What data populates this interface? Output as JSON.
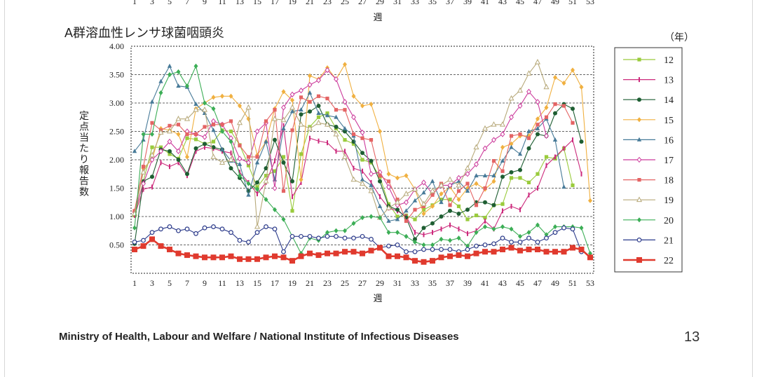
{
  "top_axis": {
    "ticks": [
      "1",
      "3",
      "5",
      "7",
      "9",
      "11",
      "13",
      "15",
      "17",
      "19",
      "21",
      "23",
      "25",
      "27",
      "29",
      "31",
      "33",
      "35",
      "37",
      "39",
      "41",
      "43",
      "45",
      "47",
      "49",
      "51",
      "53"
    ],
    "label": "週"
  },
  "chart_data": {
    "type": "line",
    "title": "A群溶血性レンサ球菌咽頭炎",
    "legend_title": "（年）",
    "xlabel": "週",
    "ylabel": "定点当たり報告数",
    "xlim": [
      1,
      53
    ],
    "ylim": [
      0,
      4.0
    ],
    "yticks": [
      "4.00",
      "3.50",
      "3.00",
      "2.50",
      "2.00",
      "1.50",
      "1.00",
      "0.50"
    ],
    "ytick_values": [
      4.0,
      3.5,
      3.0,
      2.5,
      2.0,
      1.5,
      1.0,
      0.5
    ],
    "xticks": [
      1,
      3,
      5,
      7,
      9,
      11,
      13,
      15,
      17,
      19,
      21,
      23,
      25,
      27,
      29,
      31,
      33,
      35,
      37,
      39,
      41,
      43,
      45,
      47,
      49,
      51,
      53
    ],
    "legend_position": "right",
    "x_start": 1,
    "series": [
      {
        "name": "12",
        "color": "#9acb3c",
        "marker": "square",
        "values": [
          1.02,
          1.62,
          2.22,
          2.22,
          2.1,
          2.02,
          2.38,
          2.36,
          2.28,
          2.32,
          2.52,
          2.5,
          2.26,
          1.9,
          1.52,
          1.72,
          1.8,
          2.05,
          1.1,
          2.1,
          2.58,
          2.75,
          2.82,
          2.55,
          2.35,
          2.28,
          2.0,
          1.95,
          1.7,
          1.22,
          1.0,
          1.02,
          0.95,
          1.12,
          1.2,
          1.3,
          1.3,
          1.18,
          0.95,
          1.02,
          0.98,
          1.2,
          1.22,
          1.68,
          1.68,
          1.6,
          1.75,
          2.05,
          2.02,
          2.2,
          1.55
        ]
      },
      {
        "name": "13",
        "color": "#cc2a7c",
        "marker": "bar",
        "values": [
          1.02,
          1.48,
          1.52,
          1.95,
          1.88,
          1.95,
          1.72,
          2.15,
          2.22,
          2.2,
          2.15,
          2.12,
          1.78,
          1.6,
          1.4,
          1.6,
          1.98,
          2.6,
          1.35,
          1.6,
          2.38,
          2.33,
          2.3,
          2.15,
          2.15,
          1.85,
          1.8,
          1.6,
          1.35,
          1.15,
          1.1,
          1.0,
          0.72,
          0.68,
          0.72,
          0.78,
          0.85,
          0.78,
          0.7,
          0.75,
          0.92,
          0.78,
          1.1,
          1.18,
          1.12,
          1.38,
          1.5,
          1.9,
          2.05,
          2.2,
          2.35,
          1.75
        ]
      },
      {
        "name": "14",
        "color": "#1e5e32",
        "marker": "circle-filled",
        "values": [
          0.52,
          1.62,
          1.7,
          2.18,
          2.15,
          2.0,
          1.75,
          2.2,
          2.28,
          2.22,
          2.18,
          1.85,
          1.68,
          1.45,
          1.6,
          1.85,
          2.35,
          1.95,
          1.62,
          2.8,
          2.85,
          2.95,
          2.62,
          2.58,
          2.5,
          2.32,
          2.12,
          1.98,
          1.62,
          1.18,
          1.12,
          0.98,
          0.6,
          0.8,
          0.88,
          1.0,
          1.1,
          1.05,
          1.12,
          1.25,
          1.25,
          1.2,
          1.7,
          1.78,
          1.82,
          2.2,
          2.45,
          2.42,
          2.82,
          2.98,
          2.9,
          2.32
        ]
      },
      {
        "name": "15",
        "color": "#f0b040",
        "marker": "diamond-filled",
        "values": [
          1.1,
          1.85,
          2.0,
          2.55,
          2.52,
          2.45,
          2.05,
          2.9,
          3.0,
          3.1,
          3.12,
          3.12,
          2.95,
          2.72,
          2.08,
          2.32,
          2.9,
          3.2,
          3.05,
          1.65,
          3.48,
          3.42,
          3.62,
          3.42,
          3.68,
          3.12,
          2.95,
          2.98,
          2.5,
          1.75,
          1.68,
          1.72,
          1.48,
          1.05,
          1.18,
          1.4,
          1.52,
          1.3,
          1.5,
          1.58,
          1.48,
          1.62,
          2.22,
          2.28,
          2.42,
          2.42,
          2.72,
          2.92,
          3.45,
          3.35,
          3.58,
          3.28,
          1.28
        ]
      },
      {
        "name": "16",
        "color": "#477a98",
        "marker": "triangle-filled",
        "values": [
          2.15,
          2.35,
          3.02,
          3.38,
          3.65,
          3.3,
          3.28,
          2.98,
          2.82,
          2.52,
          2.18,
          1.98,
          1.92,
          1.38,
          1.95,
          2.32,
          1.65,
          2.55,
          2.85,
          2.88,
          3.18,
          2.82,
          2.78,
          2.75,
          2.55,
          2.42,
          1.65,
          1.55,
          1.18,
          0.92,
          0.95,
          1.1,
          1.28,
          1.42,
          1.62,
          1.25,
          1.55,
          1.62,
          1.45,
          1.72,
          1.72,
          1.72,
          1.98,
          2.22,
          2.1,
          2.5,
          2.55,
          2.72,
          2.35,
          1.52
        ]
      },
      {
        "name": "17",
        "color": "#cc3b9c",
        "marker": "diamond-open",
        "values": [
          1.08,
          1.58,
          2.0,
          2.15,
          2.32,
          2.15,
          2.5,
          2.45,
          2.4,
          2.68,
          2.62,
          2.38,
          2.02,
          1.95,
          2.5,
          2.65,
          1.5,
          2.92,
          3.15,
          3.22,
          3.32,
          3.4,
          3.58,
          3.42,
          3.02,
          2.75,
          2.48,
          1.75,
          1.78,
          1.52,
          1.2,
          1.25,
          1.48,
          1.6,
          1.4,
          1.55,
          1.55,
          1.68,
          1.75,
          1.92,
          2.2,
          2.35,
          2.45,
          2.75,
          2.95,
          3.2,
          3.02,
          2.42
        ]
      },
      {
        "name": "18",
        "color": "#e46464",
        "marker": "square",
        "values": [
          1.1,
          1.88,
          2.65,
          2.52,
          2.6,
          2.62,
          2.45,
          2.45,
          2.58,
          2.62,
          2.62,
          2.68,
          2.25,
          2.05,
          2.05,
          2.68,
          2.88,
          1.45,
          2.52,
          3.1,
          3.02,
          3.12,
          3.08,
          2.88,
          2.88,
          2.45,
          2.38,
          2.35,
          1.72,
          1.62,
          1.3,
          0.92,
          1.12,
          1.18,
          1.38,
          1.58,
          1.2,
          1.45,
          1.58,
          1.2,
          1.5,
          1.98,
          1.8,
          2.42,
          2.45,
          2.38,
          2.62,
          2.75,
          2.98,
          2.95,
          2.65
        ]
      },
      {
        "name": "19",
        "color": "#b7a97a",
        "marker": "triangle-open",
        "values": [
          1.05,
          1.78,
          2.08,
          2.48,
          2.5,
          2.72,
          2.72,
          2.88,
          2.88,
          2.05,
          1.95,
          2.0,
          2.65,
          2.92,
          0.82,
          1.62,
          2.72,
          2.7,
          2.92,
          2.62,
          2.55,
          2.65,
          2.62,
          2.45,
          2.05,
          1.65,
          1.58,
          1.45,
          0.98,
          1.15,
          1.25,
          1.4,
          1.48,
          1.22,
          1.45,
          1.55,
          1.65,
          1.55,
          1.85,
          2.22,
          2.55,
          2.62,
          2.62,
          3.08,
          3.22,
          3.52,
          3.72,
          3.28
        ]
      },
      {
        "name": "20",
        "color": "#3cae56",
        "marker": "diamond-filled",
        "values": [
          0.8,
          2.45,
          2.45,
          3.18,
          3.5,
          3.55,
          3.3,
          3.65,
          3.0,
          2.9,
          2.5,
          2.32,
          1.72,
          1.58,
          1.48,
          1.3,
          1.12,
          0.95,
          0.65,
          0.35,
          0.62,
          0.58,
          0.72,
          0.75,
          0.75,
          0.88,
          0.98,
          1.0,
          0.98,
          0.72,
          0.72,
          0.65,
          0.55,
          0.5,
          0.5,
          0.6,
          0.58,
          0.62,
          0.48,
          0.72,
          0.82,
          0.78,
          0.82,
          0.78,
          0.65,
          0.72,
          0.85,
          0.68,
          0.82,
          0.82,
          0.82,
          0.8,
          0.35
        ]
      },
      {
        "name": "21",
        "color": "#2b3a8a",
        "marker": "circle-open",
        "values": [
          0.55,
          0.58,
          0.72,
          0.78,
          0.82,
          0.75,
          0.78,
          0.7,
          0.8,
          0.82,
          0.78,
          0.72,
          0.58,
          0.55,
          0.72,
          0.82,
          0.78,
          0.38,
          0.65,
          0.65,
          0.65,
          0.62,
          0.65,
          0.65,
          0.62,
          0.62,
          0.65,
          0.6,
          0.45,
          0.48,
          0.5,
          0.38,
          0.38,
          0.42,
          0.42,
          0.42,
          0.42,
          0.38,
          0.42,
          0.48,
          0.5,
          0.52,
          0.62,
          0.55,
          0.55,
          0.62,
          0.55,
          0.62,
          0.72,
          0.8,
          0.78,
          0.38
        ]
      },
      {
        "name": "22",
        "color": "#e03a2e",
        "marker": "square-large",
        "values": [
          0.42,
          0.48,
          0.6,
          0.48,
          0.42,
          0.35,
          0.32,
          0.3,
          0.28,
          0.28,
          0.28,
          0.3,
          0.25,
          0.25,
          0.25,
          0.28,
          0.3,
          0.28,
          0.22,
          0.3,
          0.35,
          0.32,
          0.35,
          0.35,
          0.38,
          0.38,
          0.35,
          0.4,
          0.45,
          0.3,
          0.3,
          0.28,
          0.22,
          0.2,
          0.22,
          0.28,
          0.3,
          0.32,
          0.3,
          0.35,
          0.38,
          0.38,
          0.42,
          0.45,
          0.4,
          0.42,
          0.42,
          0.38,
          0.38,
          0.38,
          0.45,
          0.42,
          0.28
        ]
      }
    ]
  },
  "footer": {
    "source": "Ministry of Health, Labour and Welfare / National Institute of Infectious Diseases",
    "page_number": "13"
  }
}
